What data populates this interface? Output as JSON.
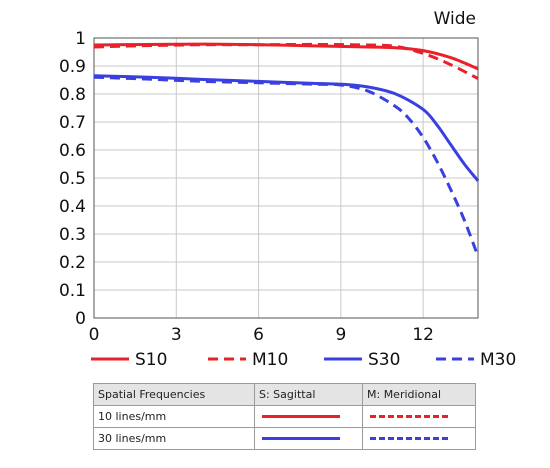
{
  "chart_data": {
    "type": "line",
    "title": "Wide",
    "xlabel": "",
    "ylabel": "",
    "xlim": [
      0,
      14
    ],
    "ylim": [
      0,
      1
    ],
    "x_ticks": [
      0,
      3,
      6,
      9,
      12
    ],
    "y_ticks": [
      0,
      0.1,
      0.2,
      0.3,
      0.4,
      0.5,
      0.6,
      0.7,
      0.8,
      0.9,
      1
    ],
    "y_tick_labels": [
      "0",
      "0.1",
      "0.2",
      "0.3",
      "0.4",
      "0.5",
      "0.6",
      "0.7",
      "0.8",
      "0.9",
      "1"
    ],
    "grid": true,
    "legend_position": "bottom",
    "series": [
      {
        "name": "S10",
        "color": "#e8212b",
        "dash": false,
        "x": [
          0,
          2,
          4,
          6,
          8,
          10,
          11,
          12,
          13,
          14
        ],
        "y": [
          0.975,
          0.977,
          0.978,
          0.976,
          0.972,
          0.968,
          0.965,
          0.955,
          0.93,
          0.89
        ]
      },
      {
        "name": "M10",
        "color": "#e8212b",
        "dash": true,
        "x": [
          0,
          2,
          4,
          6,
          8,
          10,
          11,
          12,
          13,
          14
        ],
        "y": [
          0.968,
          0.973,
          0.976,
          0.976,
          0.977,
          0.975,
          0.97,
          0.945,
          0.905,
          0.855
        ]
      },
      {
        "name": "S30",
        "color": "#3a3fe0",
        "dash": false,
        "x": [
          0,
          2,
          4,
          6,
          8,
          9,
          10,
          11,
          12,
          12.5,
          13,
          13.5,
          14
        ],
        "y": [
          0.865,
          0.86,
          0.852,
          0.845,
          0.838,
          0.835,
          0.825,
          0.8,
          0.745,
          0.69,
          0.62,
          0.55,
          0.49
        ]
      },
      {
        "name": "M30",
        "color": "#3a3fe0",
        "dash": true,
        "x": [
          0,
          2,
          4,
          6,
          8,
          9,
          10,
          11,
          11.5,
          12,
          12.5,
          13,
          13.5,
          14
        ],
        "y": [
          0.86,
          0.853,
          0.845,
          0.84,
          0.835,
          0.832,
          0.81,
          0.755,
          0.71,
          0.645,
          0.56,
          0.46,
          0.35,
          0.22
        ]
      }
    ]
  },
  "table": {
    "headers": [
      "Spatial Frequencies",
      "S: Sagittal",
      "M: Meridional"
    ],
    "rows": [
      {
        "label": "10 lines/mm"
      },
      {
        "label": "30 lines/mm"
      }
    ]
  }
}
